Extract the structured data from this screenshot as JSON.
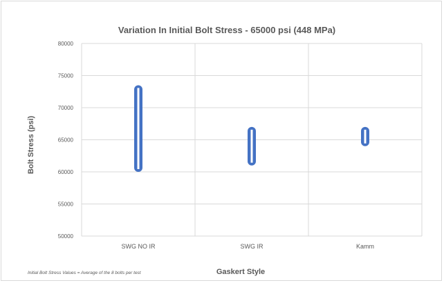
{
  "chart_data": {
    "type": "range-bar",
    "title": "Variation In Initial Bolt Stress - 65000 psi (448 MPa)",
    "xlabel": "Gaskert Style",
    "ylabel": "Bolt Stress (psi)",
    "footnote": "Initial Bolt Stress Values = Average of the 8 bolts per test",
    "categories": [
      "SWG NO IR",
      "SWG IR",
      "Kamm"
    ],
    "ranges": [
      {
        "low": 60000,
        "high": 73500
      },
      {
        "low": 61000,
        "high": 67000
      },
      {
        "low": 64000,
        "high": 67000
      }
    ],
    "ylim": [
      50000,
      80000
    ],
    "yticks": [
      "50000",
      "55000",
      "60000",
      "65000",
      "70000",
      "75000",
      "80000"
    ],
    "grid": true,
    "colors": {
      "bar": "#4472c4",
      "bar_inner": "#ffffff",
      "grid": "#d9d9d9",
      "text": "#595959"
    }
  }
}
